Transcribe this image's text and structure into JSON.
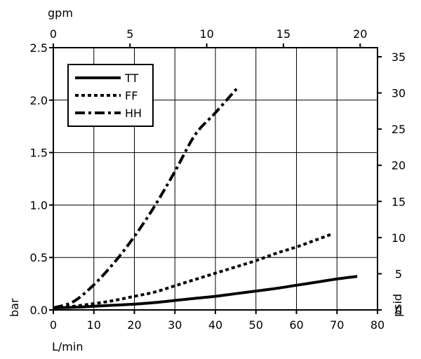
{
  "chart_data": {
    "type": "line",
    "title": "",
    "xlabel": "L/min",
    "ylabel": "bar",
    "x2label": "gpm",
    "y2label": "psid",
    "xlim": [
      0,
      80
    ],
    "ylim": [
      0,
      2.5
    ],
    "x2lim": [
      0,
      21.13
    ],
    "y2lim": [
      0,
      36.26
    ],
    "xticks": [
      "0",
      "10",
      "20",
      "30",
      "40",
      "50",
      "60",
      "70",
      "80"
    ],
    "xtick_values": [
      0,
      10,
      20,
      30,
      40,
      50,
      60,
      70,
      80
    ],
    "yticks": [
      "0.0",
      "0.5",
      "1.0",
      "1.5",
      "2.0",
      "2.5"
    ],
    "ytick_values": [
      0,
      0.5,
      1.0,
      1.5,
      2.0,
      2.5
    ],
    "x2ticks": [
      "0",
      "5",
      "10",
      "15",
      "20"
    ],
    "x2tick_values": [
      0,
      5,
      10,
      15,
      20
    ],
    "y2ticks": [
      "0",
      "5",
      "10",
      "15",
      "20",
      "25",
      "30",
      "35"
    ],
    "y2tick_values": [
      0,
      5,
      10,
      15,
      20,
      25,
      30,
      35
    ],
    "grid": true,
    "legend_position": "top-left",
    "series": [
      {
        "name": "TT",
        "style": "solid",
        "x": [
          0,
          5,
          10,
          15,
          20,
          25,
          30,
          35,
          40,
          45,
          50,
          55,
          60,
          65,
          70,
          75
        ],
        "y": [
          0.02,
          0.025,
          0.035,
          0.045,
          0.055,
          0.07,
          0.09,
          0.11,
          0.13,
          0.155,
          0.18,
          0.205,
          0.235,
          0.265,
          0.295,
          0.32
        ]
      },
      {
        "name": "FF",
        "style": "dotted",
        "x": [
          0,
          5,
          10,
          15,
          20,
          25,
          30,
          35,
          40,
          45,
          50,
          55,
          60,
          65,
          68.5
        ],
        "y": [
          0.02,
          0.035,
          0.06,
          0.09,
          0.13,
          0.17,
          0.23,
          0.29,
          0.35,
          0.41,
          0.47,
          0.54,
          0.6,
          0.67,
          0.72
        ]
      },
      {
        "name": "HH",
        "style": "dash-dot",
        "x": [
          0,
          5,
          10,
          15,
          20,
          25,
          30,
          35,
          40,
          45.5
        ],
        "y": [
          0.02,
          0.08,
          0.24,
          0.45,
          0.7,
          0.99,
          1.32,
          1.67,
          1.88,
          2.12
        ]
      }
    ]
  }
}
